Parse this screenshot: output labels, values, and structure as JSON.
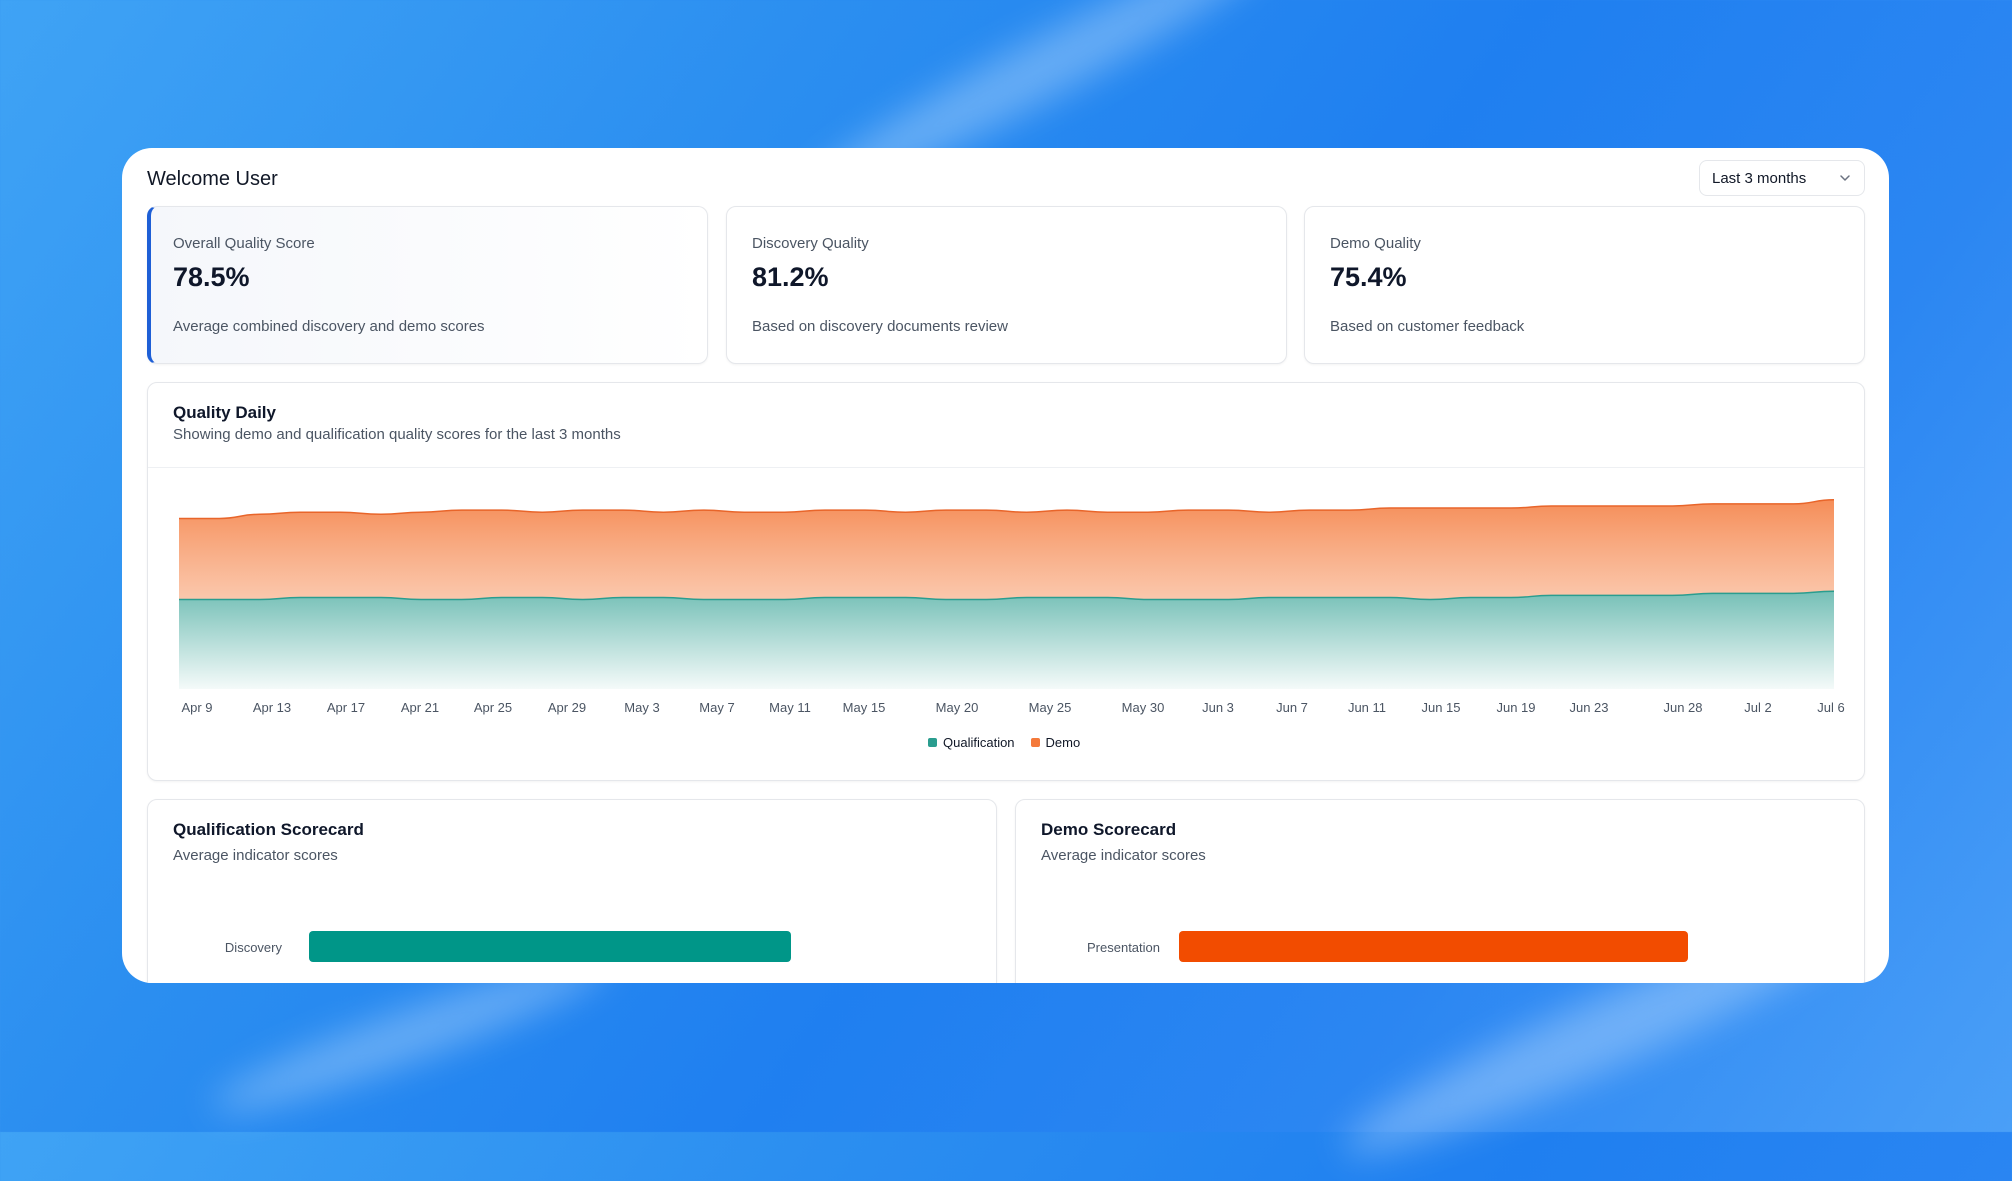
{
  "header": {
    "title": "Welcome User",
    "range_select": {
      "value": "Last 3 months"
    }
  },
  "stats": [
    {
      "label": "Overall Quality Score",
      "value": "78.5%",
      "description": "Average combined discovery and demo scores"
    },
    {
      "label": "Discovery Quality",
      "value": "81.2%",
      "description": "Based on discovery documents review"
    },
    {
      "label": "Demo Quality",
      "value": "75.4%",
      "description": "Based on customer feedback"
    }
  ],
  "quality_daily": {
    "title": "Quality Daily",
    "subtitle": "Showing demo and qualification quality scores for the last 3 months",
    "legend": {
      "qualification": "Qualification",
      "demo": "Demo"
    }
  },
  "colors": {
    "qualification": "#2a9d8f",
    "demo": "#f4793a",
    "accent": "#1e5fd6",
    "qualification_bar": "#009688",
    "demo_bar": "#f24c00"
  },
  "chart_data": {
    "type": "area",
    "stacked": true,
    "x_tick_labels": [
      "Apr 9",
      "Apr 13",
      "Apr 17",
      "Apr 21",
      "Apr 25",
      "Apr 29",
      "May 3",
      "May 7",
      "May 11",
      "May 15",
      "May 20",
      "May 25",
      "May 30",
      "Jun 3",
      "Jun 7",
      "Jun 11",
      "Jun 15",
      "Jun 19",
      "Jun 23",
      "Jun 28",
      "Jul 2",
      "Jul 6"
    ],
    "series": [
      {
        "name": "Qualification",
        "values": [
          43,
          43,
          43,
          44,
          44,
          44,
          43,
          43,
          44,
          44,
          43,
          44,
          44,
          43,
          43,
          43,
          44,
          44,
          44,
          43,
          43,
          44,
          44,
          44,
          43,
          43,
          43,
          44,
          44,
          44,
          44,
          43,
          44,
          44,
          45,
          45,
          45,
          45,
          46,
          46,
          46,
          47
        ]
      },
      {
        "name": "Demo",
        "values": [
          82,
          82,
          84,
          85,
          85,
          84,
          85,
          86,
          86,
          85,
          86,
          86,
          85,
          86,
          85,
          85,
          86,
          86,
          85,
          86,
          86,
          85,
          86,
          85,
          85,
          86,
          86,
          85,
          86,
          86,
          87,
          87,
          87,
          87,
          88,
          88,
          88,
          88,
          89,
          89,
          89,
          91
        ]
      }
    ],
    "grid": false,
    "legend_position": "bottom-center"
  },
  "qualification_scorecard": {
    "title": "Qualification Scorecard",
    "subtitle": "Average indicator scores",
    "bars": [
      {
        "label": "Discovery",
        "value": 0.5
      }
    ]
  },
  "demo_scorecard": {
    "title": "Demo Scorecard",
    "subtitle": "Average indicator scores",
    "bars": [
      {
        "label": "Presentation",
        "value": 0.53
      }
    ]
  }
}
